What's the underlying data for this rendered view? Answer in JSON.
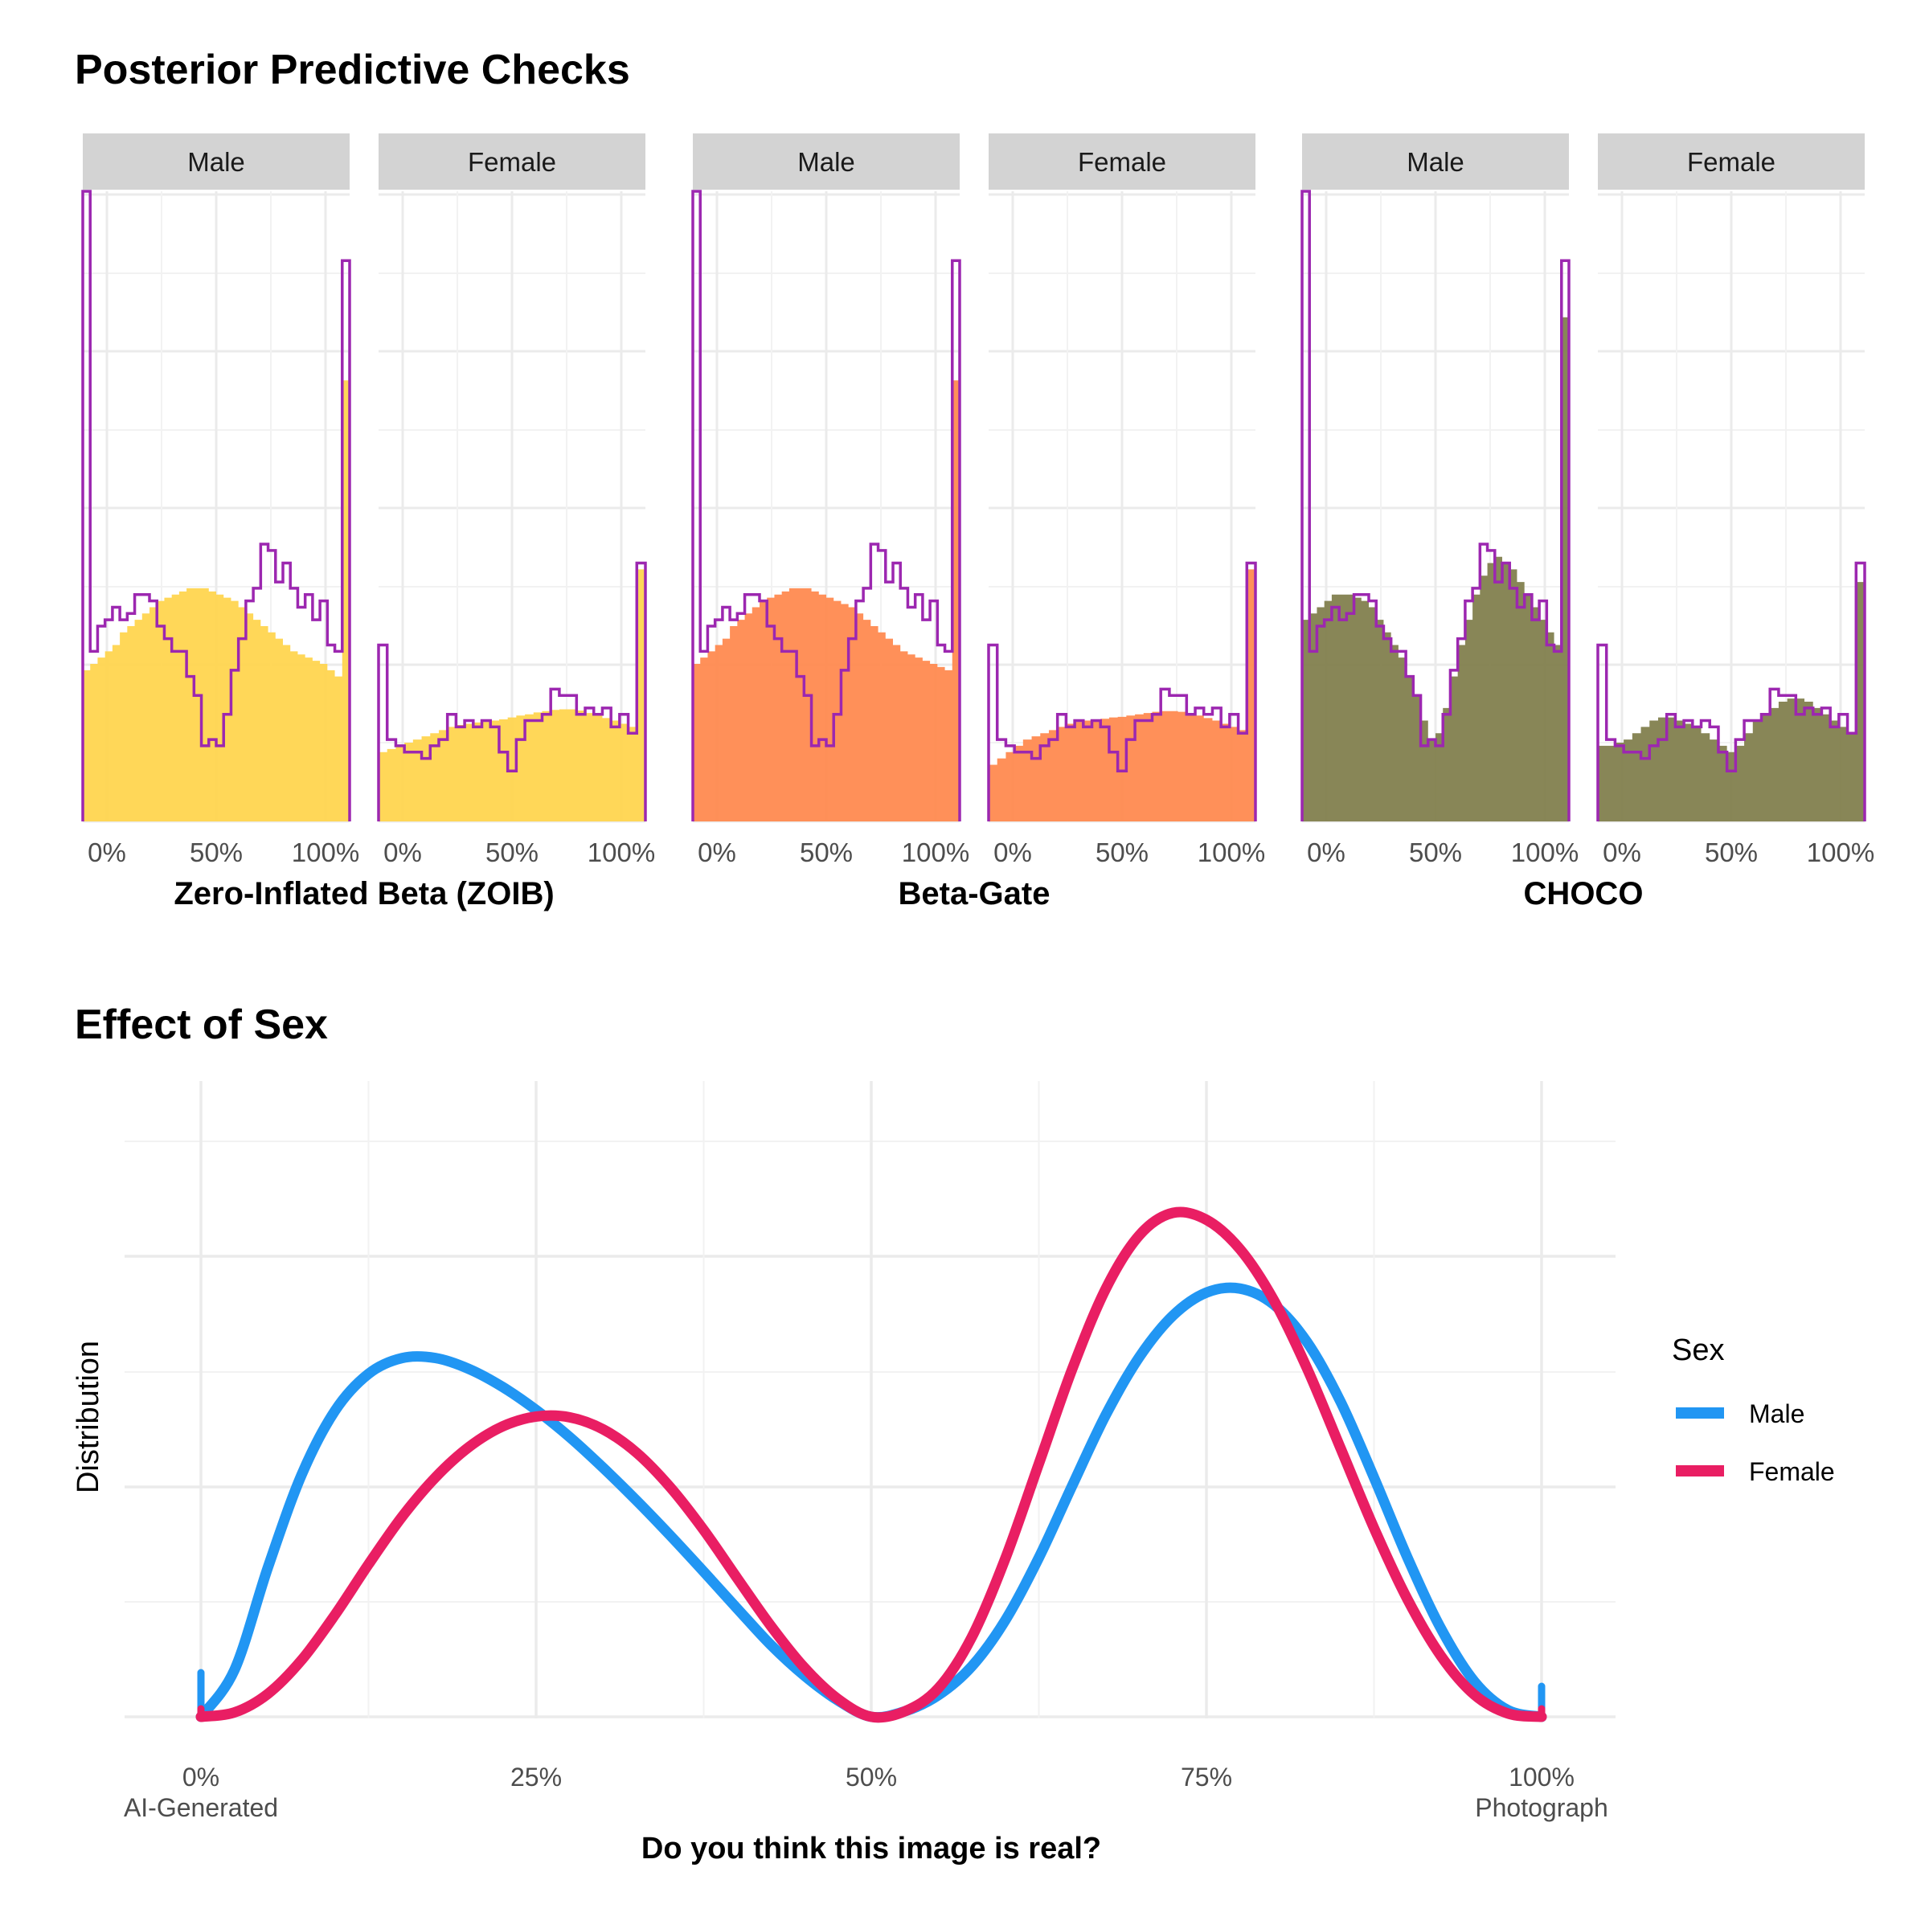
{
  "top_title": "Posterior Predictive Checks",
  "bottom_title": "Effect of Sex",
  "colors": {
    "zoib": "#FFD54F",
    "betagate": "#FF8A50",
    "choco": "#827F4E",
    "observed": "#9C27B0",
    "male": "#2196F3",
    "female": "#E91E63",
    "strip": "#D3D3D3",
    "grid": "#EBEBEB"
  },
  "chart_data": [
    {
      "type": "histogram",
      "title": "Posterior Predictive Checks",
      "x_ticks": [
        "0%",
        "50%",
        "100%"
      ],
      "groups": [
        {
          "model": "Zero-Inflated Beta (ZOIB)",
          "fill": "#FFD54F",
          "panels": [
            {
              "strip": "Male",
              "observed": [
                1.0,
                0.27,
                0.31,
                0.32,
                0.34,
                0.32,
                0.33,
                0.36,
                0.36,
                0.35,
                0.31,
                0.29,
                0.27,
                0.27,
                0.23,
                0.2,
                0.12,
                0.13,
                0.12,
                0.17,
                0.24,
                0.29,
                0.35,
                0.37,
                0.44,
                0.43,
                0.38,
                0.41,
                0.37,
                0.34,
                0.36,
                0.32,
                0.35,
                0.28,
                0.27,
                0.89
              ],
              "predicted": [
                0.24,
                0.25,
                0.26,
                0.27,
                0.28,
                0.3,
                0.31,
                0.32,
                0.33,
                0.34,
                0.35,
                0.355,
                0.36,
                0.365,
                0.37,
                0.37,
                0.37,
                0.365,
                0.36,
                0.355,
                0.35,
                0.34,
                0.33,
                0.32,
                0.31,
                0.3,
                0.29,
                0.28,
                0.27,
                0.265,
                0.26,
                0.255,
                0.25,
                0.24,
                0.23,
                0.7
              ]
            },
            {
              "strip": "Female",
              "observed": [
                0.28,
                0.13,
                0.12,
                0.11,
                0.11,
                0.1,
                0.12,
                0.13,
                0.17,
                0.15,
                0.16,
                0.15,
                0.16,
                0.15,
                0.11,
                0.08,
                0.13,
                0.16,
                0.16,
                0.17,
                0.21,
                0.2,
                0.2,
                0.17,
                0.18,
                0.17,
                0.18,
                0.15,
                0.17,
                0.14,
                0.41
              ],
              "predicted": [
                0.11,
                0.115,
                0.12,
                0.125,
                0.13,
                0.135,
                0.14,
                0.145,
                0.15,
                0.153,
                0.155,
                0.157,
                0.158,
                0.16,
                0.162,
                0.165,
                0.168,
                0.17,
                0.173,
                0.175,
                0.177,
                0.178,
                0.178,
                0.176,
                0.172,
                0.168,
                0.164,
                0.16,
                0.155,
                0.15,
                0.4
              ]
            }
          ]
        },
        {
          "model": "Beta-Gate",
          "fill": "#FF8A50",
          "panels": [
            {
              "strip": "Male",
              "observed": [
                1.0,
                0.27,
                0.31,
                0.32,
                0.34,
                0.32,
                0.33,
                0.36,
                0.36,
                0.35,
                0.31,
                0.29,
                0.27,
                0.27,
                0.23,
                0.2,
                0.12,
                0.13,
                0.12,
                0.17,
                0.24,
                0.29,
                0.35,
                0.37,
                0.44,
                0.43,
                0.38,
                0.41,
                0.37,
                0.34,
                0.36,
                0.32,
                0.35,
                0.28,
                0.27,
                0.89
              ],
              "predicted": [
                0.25,
                0.26,
                0.27,
                0.28,
                0.29,
                0.31,
                0.32,
                0.33,
                0.34,
                0.35,
                0.355,
                0.36,
                0.365,
                0.37,
                0.37,
                0.37,
                0.365,
                0.36,
                0.355,
                0.35,
                0.345,
                0.34,
                0.33,
                0.32,
                0.31,
                0.3,
                0.29,
                0.28,
                0.27,
                0.265,
                0.26,
                0.255,
                0.25,
                0.245,
                0.24,
                0.7
              ]
            },
            {
              "strip": "Female",
              "observed": [
                0.28,
                0.13,
                0.12,
                0.11,
                0.11,
                0.1,
                0.12,
                0.13,
                0.17,
                0.15,
                0.16,
                0.15,
                0.16,
                0.15,
                0.11,
                0.08,
                0.13,
                0.16,
                0.16,
                0.17,
                0.21,
                0.2,
                0.2,
                0.17,
                0.18,
                0.17,
                0.18,
                0.15,
                0.17,
                0.14,
                0.41
              ],
              "predicted": [
                0.09,
                0.1,
                0.11,
                0.12,
                0.13,
                0.135,
                0.14,
                0.145,
                0.15,
                0.155,
                0.158,
                0.16,
                0.162,
                0.163,
                0.165,
                0.166,
                0.168,
                0.17,
                0.172,
                0.174,
                0.175,
                0.175,
                0.174,
                0.172,
                0.168,
                0.164,
                0.16,
                0.155,
                0.15,
                0.145,
                0.4
              ]
            }
          ]
        },
        {
          "model": "CHOCO",
          "fill": "#827F4E",
          "panels": [
            {
              "strip": "Male",
              "observed": [
                1.0,
                0.27,
                0.31,
                0.32,
                0.34,
                0.32,
                0.33,
                0.36,
                0.36,
                0.35,
                0.31,
                0.29,
                0.27,
                0.27,
                0.23,
                0.2,
                0.12,
                0.13,
                0.12,
                0.17,
                0.24,
                0.29,
                0.35,
                0.37,
                0.44,
                0.43,
                0.38,
                0.41,
                0.37,
                0.34,
                0.36,
                0.32,
                0.35,
                0.28,
                0.27,
                0.89
              ],
              "predicted": [
                0.32,
                0.33,
                0.34,
                0.35,
                0.36,
                0.36,
                0.36,
                0.355,
                0.35,
                0.34,
                0.32,
                0.3,
                0.28,
                0.26,
                0.23,
                0.2,
                0.16,
                0.13,
                0.14,
                0.18,
                0.23,
                0.28,
                0.32,
                0.36,
                0.39,
                0.41,
                0.42,
                0.41,
                0.4,
                0.38,
                0.36,
                0.34,
                0.32,
                0.3,
                0.28,
                0.8
              ]
            },
            {
              "strip": "Female",
              "observed": [
                0.28,
                0.13,
                0.12,
                0.11,
                0.11,
                0.1,
                0.12,
                0.13,
                0.17,
                0.15,
                0.16,
                0.15,
                0.16,
                0.15,
                0.11,
                0.08,
                0.13,
                0.16,
                0.16,
                0.17,
                0.21,
                0.2,
                0.2,
                0.17,
                0.18,
                0.17,
                0.18,
                0.15,
                0.17,
                0.14,
                0.41
              ],
              "predicted": [
                0.12,
                0.12,
                0.125,
                0.13,
                0.14,
                0.15,
                0.16,
                0.165,
                0.165,
                0.16,
                0.155,
                0.15,
                0.14,
                0.13,
                0.12,
                0.11,
                0.12,
                0.14,
                0.16,
                0.17,
                0.18,
                0.19,
                0.195,
                0.195,
                0.19,
                0.18,
                0.17,
                0.16,
                0.15,
                0.14,
                0.38
              ]
            }
          ]
        }
      ]
    },
    {
      "type": "line",
      "title": "Effect of Sex",
      "xlabel": "Do you think this image is real?",
      "ylabel": "Distribution",
      "xlim": [
        0,
        1
      ],
      "x_ticks": [
        "0%",
        "25%",
        "50%",
        "75%",
        "100%"
      ],
      "x_subticks": [
        "AI-Generated",
        "",
        "",
        "",
        "Photograph"
      ],
      "legend": {
        "title": "Sex",
        "position": "right"
      },
      "x": [
        0,
        0.025,
        0.05,
        0.075,
        0.1,
        0.125,
        0.15,
        0.175,
        0.2,
        0.225,
        0.25,
        0.275,
        0.3,
        0.325,
        0.35,
        0.375,
        0.4,
        0.425,
        0.45,
        0.475,
        0.5,
        0.525,
        0.55,
        0.575,
        0.6,
        0.625,
        0.65,
        0.675,
        0.7,
        0.725,
        0.75,
        0.775,
        0.8,
        0.825,
        0.85,
        0.875,
        0.9,
        0.925,
        0.95,
        0.975,
        1
      ],
      "series": [
        {
          "name": "Male",
          "color": "#2196F3",
          "values": [
            0.0,
            0.128,
            0.409,
            0.661,
            0.837,
            0.938,
            0.981,
            0.981,
            0.951,
            0.902,
            0.839,
            0.765,
            0.681,
            0.591,
            0.496,
            0.397,
            0.296,
            0.197,
            0.113,
            0.045,
            0.0,
            0.015,
            0.059,
            0.138,
            0.264,
            0.435,
            0.633,
            0.826,
            0.984,
            1.097,
            1.16,
            1.171,
            1.128,
            1.025,
            0.862,
            0.654,
            0.435,
            0.241,
            0.096,
            0.018,
            0.0
          ]
        },
        {
          "name": "Female",
          "color": "#E91E63",
          "values": [
            0.0,
            0.012,
            0.063,
            0.155,
            0.279,
            0.417,
            0.547,
            0.655,
            0.738,
            0.794,
            0.821,
            0.819,
            0.786,
            0.722,
            0.628,
            0.511,
            0.379,
            0.249,
            0.135,
            0.049,
            0.0,
            0.015,
            0.078,
            0.218,
            0.433,
            0.692,
            0.952,
            1.171,
            1.317,
            1.378,
            1.359,
            1.279,
            1.141,
            0.953,
            0.735,
            0.516,
            0.321,
            0.166,
            0.06,
            0.009,
            0.0
          ]
        }
      ]
    }
  ],
  "legend_labels": [
    "Male",
    "Female"
  ]
}
